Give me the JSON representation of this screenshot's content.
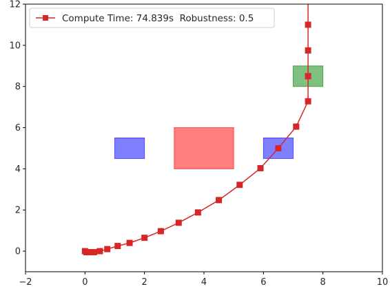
{
  "chart_data": {
    "type": "line",
    "title": "",
    "xlabel": "",
    "ylabel": "",
    "xlim": [
      -2,
      10
    ],
    "ylim": [
      -1,
      12
    ],
    "x_ticks": [
      -2,
      0,
      2,
      4,
      6,
      8,
      10
    ],
    "y_ticks": [
      0,
      2,
      4,
      6,
      8,
      10,
      12
    ],
    "x_tick_labels": [
      "−2",
      "0",
      "2",
      "4",
      "6",
      "8",
      "10"
    ],
    "y_tick_labels": [
      "0",
      "2",
      "4",
      "6",
      "8",
      "10",
      "12"
    ],
    "grid": false,
    "legend_position": "top-left",
    "series": [
      {
        "name": "Compute Time: 74.839s  Robustness: 0.5",
        "color": "#d62728",
        "marker": "square",
        "x": [
          0,
          0.05,
          0.15,
          0.3,
          0.5,
          0.75,
          1.1,
          1.5,
          2.0,
          2.55,
          3.15,
          3.8,
          4.5,
          5.2,
          5.9,
          6.5,
          7.1,
          7.5,
          7.5,
          7.5,
          7.5,
          7.5
        ],
        "y": [
          0,
          -0.05,
          -0.05,
          -0.05,
          0,
          0.1,
          0.25,
          0.4,
          0.65,
          0.97,
          1.38,
          1.88,
          2.48,
          3.22,
          4.03,
          5.0,
          6.05,
          7.28,
          8.5,
          9.75,
          11.0,
          12.5
        ]
      }
    ],
    "regions": [
      {
        "kind": "obstacle",
        "color": "#0000ff",
        "opacity": 0.5,
        "x": [
          1,
          2
        ],
        "y": [
          4.5,
          5.5
        ]
      },
      {
        "kind": "obstacle",
        "color": "#ff0000",
        "opacity": 0.5,
        "x": [
          3,
          5
        ],
        "y": [
          4,
          6
        ]
      },
      {
        "kind": "obstacle",
        "color": "#0000ff",
        "opacity": 0.5,
        "x": [
          6,
          7
        ],
        "y": [
          4.5,
          5.5
        ]
      },
      {
        "kind": "goal",
        "color": "#008000",
        "opacity": 0.5,
        "x": [
          7,
          8
        ],
        "y": [
          8,
          9
        ]
      }
    ]
  }
}
